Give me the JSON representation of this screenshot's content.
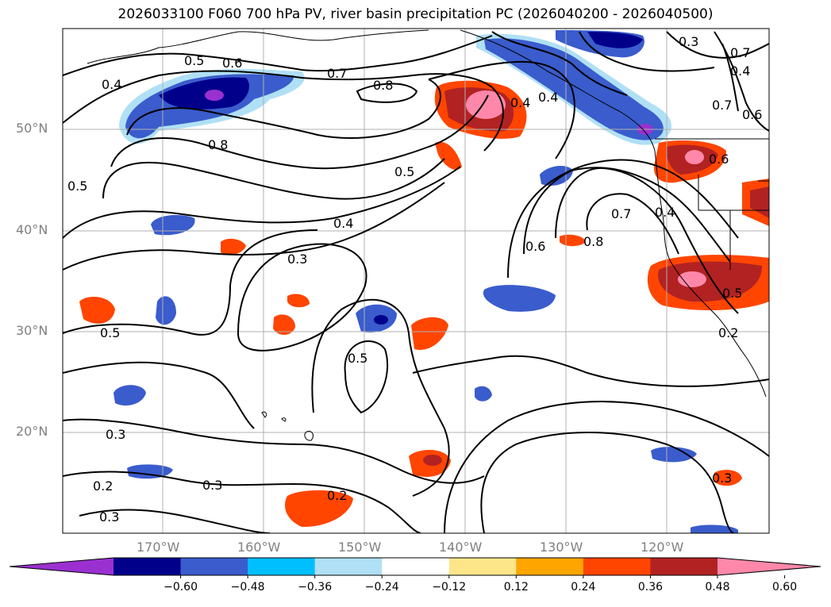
{
  "title": "2026033100 F060 700 hPa PV, river basin precipitation PC (2026040200 - 2026040500)",
  "lat_labels": [
    "50°N",
    "40°N",
    "30°N",
    "20°N"
  ],
  "lon_labels": [
    "170°W",
    "160°W",
    "150°W",
    "140°W",
    "130°W",
    "120°W"
  ],
  "colorbar": {
    "ticks": [
      "−0.60",
      "−0.48",
      "−0.36",
      "−0.24",
      "−0.12",
      "0.12",
      "0.24",
      "0.36",
      "0.48",
      "0.60"
    ],
    "colors": [
      "#9b30d0",
      "#00008b",
      "#3a5ccc",
      "#00bfff",
      "#b0e0f5",
      "#ffffff",
      "#fde68a",
      "#ffa500",
      "#ff4500",
      "#b22222",
      "#ff88aa"
    ]
  },
  "contour_labels": [
    "0.5",
    "0.6",
    "0.7",
    "0.8",
    "0.4",
    "0.8",
    "0.5",
    "0.4",
    "0.3",
    "0.5",
    "0.5",
    "0.3",
    "0.3",
    "0.2",
    "0.3",
    "0.2",
    "0.3",
    "0.6",
    "0.7",
    "0.8",
    "0.4",
    "0.4",
    "0.4",
    "0.5",
    "0.7",
    "0.6",
    "0.6",
    "0.7",
    "0.3",
    "0.4",
    "0.5",
    "0.2"
  ]
}
